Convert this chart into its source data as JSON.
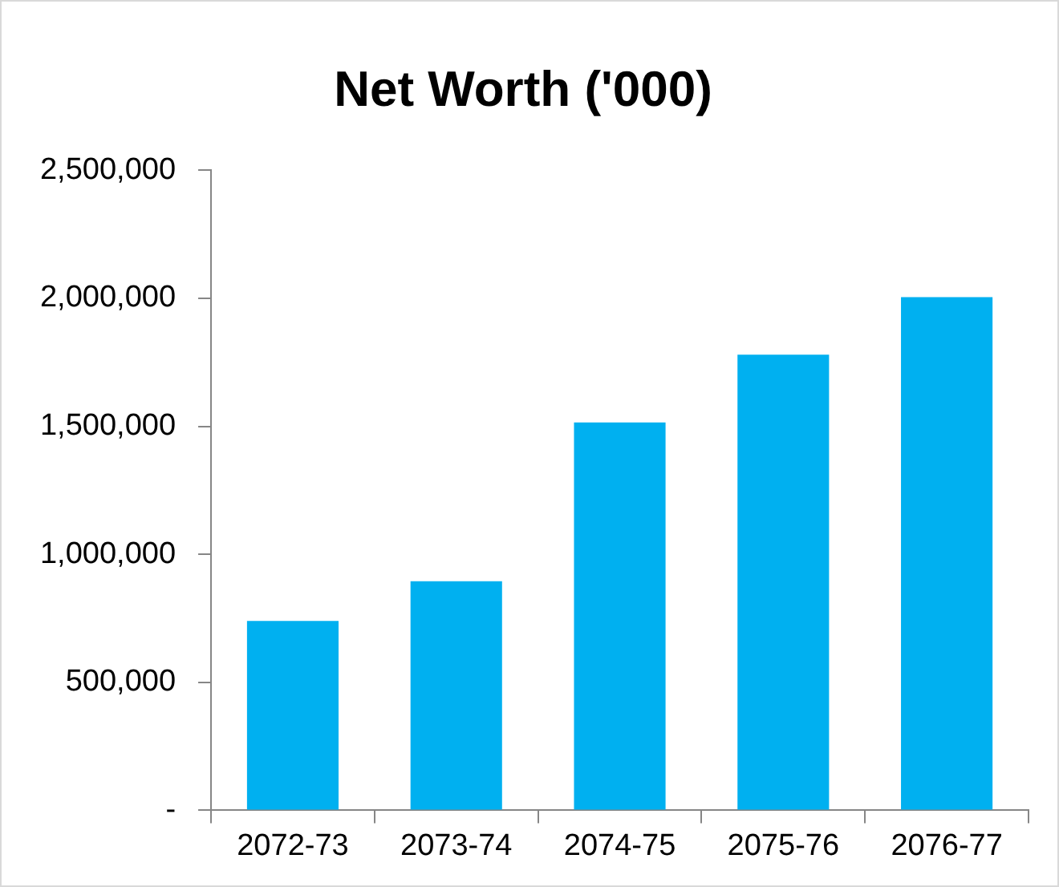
{
  "chart_data": {
    "type": "bar",
    "title": "Net Worth ('000)",
    "categories": [
      "2072-73",
      "2073-74",
      "2074-75",
      "2075-76",
      "2076-77"
    ],
    "values": [
      740000,
      895000,
      1515000,
      1780000,
      2005000
    ],
    "color": "#00b0f0",
    "ylim": [
      0,
      2500000
    ],
    "yticks": [
      {
        "value": 0,
        "label": "-"
      },
      {
        "value": 500000,
        "label": "500,000"
      },
      {
        "value": 1000000,
        "label": "1,000,000"
      },
      {
        "value": 1500000,
        "label": "1,500,000"
      },
      {
        "value": 2000000,
        "label": "2,000,000"
      },
      {
        "value": 2500000,
        "label": "2,500,000"
      }
    ],
    "legend": false
  }
}
